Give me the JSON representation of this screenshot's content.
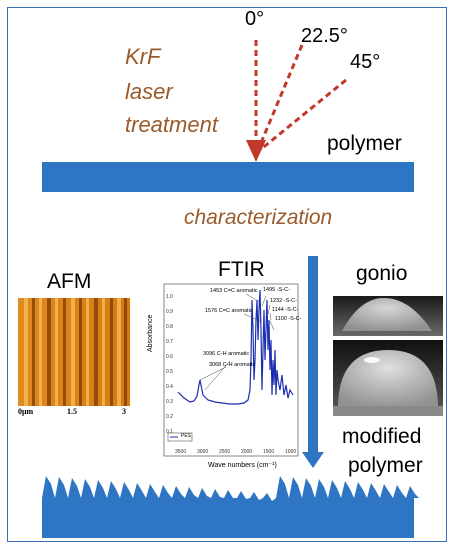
{
  "angles": [
    "0°",
    "22.5°",
    "45°"
  ],
  "laser_text": [
    "KrF",
    "laser",
    "treatment"
  ],
  "polymer_label": "polymer",
  "characterization_label": "characterization",
  "afm": {
    "title": "AFM",
    "axis_ticks": [
      "0μm",
      "1.5",
      "3"
    ]
  },
  "ftir": {
    "title": "FTIR",
    "ylabel": "Absorbance",
    "xlabel": "Wave numbers (cm⁻¹)",
    "yticks": [
      "1.0",
      "0.9",
      "0.8",
      "0.7",
      "0.6",
      "0.5",
      "0.4",
      "0.3",
      "0.2",
      "0.1"
    ],
    "xticks": [
      "3500",
      "3000",
      "2500",
      "2000",
      "1500",
      "1000"
    ],
    "annotations": [
      "1453 C=C aromatic",
      "1576 C=C aromatic",
      "1495 -S-C-",
      "1232 -S-C-",
      "1144 -S-C-",
      "1100 -S-C-",
      "3096 C-H aromatic",
      "3068 C-H aromatic"
    ],
    "legend": "PES"
  },
  "gonio_label": "gonio",
  "modified_label": [
    "modified",
    "polymer"
  ],
  "colors": {
    "accent_blue": "#2e75c3",
    "laser_red": "#c0392b",
    "text_brown": "#9a5a2a"
  }
}
